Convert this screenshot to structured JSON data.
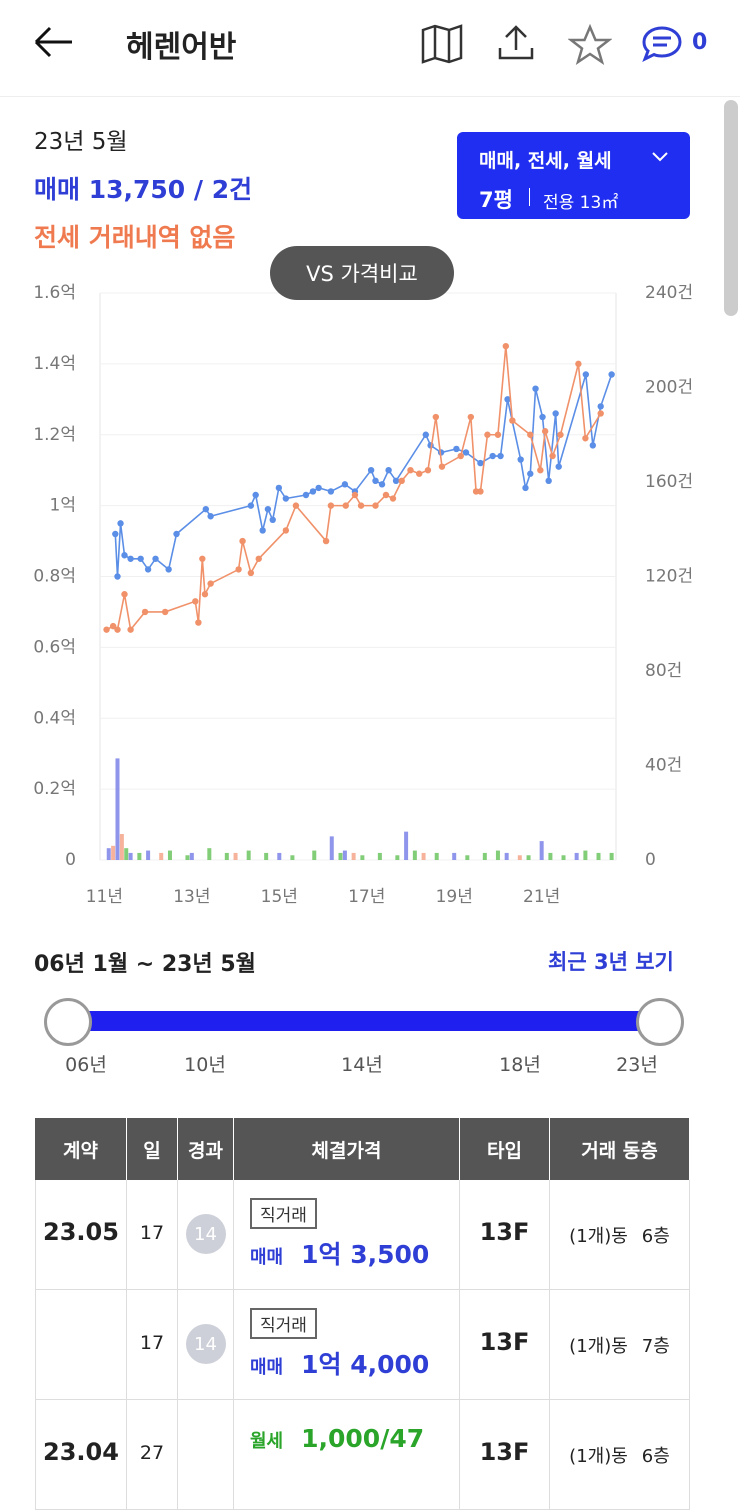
{
  "header": {
    "title": "헤렌어반",
    "comment_count": "0"
  },
  "summary": {
    "period": "23년 5월",
    "sale": "매매 13,750 / 2건",
    "lease": "전세 거래내역 없음",
    "filter": "매매, 전세, 월세",
    "size": "7평",
    "area": "전용 13㎡",
    "compare": "VS 가격비교"
  },
  "chart_data": {
    "type": "line",
    "xlim": [
      10.9,
      22.7
    ],
    "xticks": [
      {
        "value": 11,
        "label": "11년"
      },
      {
        "value": 13,
        "label": "13년"
      },
      {
        "value": 15,
        "label": "15년"
      },
      {
        "value": 17,
        "label": "17년"
      },
      {
        "value": 19,
        "label": "19년"
      },
      {
        "value": 21,
        "label": "21년"
      }
    ],
    "ylim": [
      0,
      1.6
    ],
    "yticks": [
      0,
      {
        "value": 0.2,
        "label": "0.2억"
      },
      {
        "value": 0.4,
        "label": "0.4억"
      },
      {
        "value": 0.6,
        "label": "0.6억"
      },
      {
        "value": 0.8,
        "label": "0.8억"
      },
      {
        "value": 1,
        "label": "1억"
      },
      {
        "value": 1.2,
        "label": "1.2억"
      },
      {
        "value": 1.4,
        "label": "1.4억"
      },
      {
        "value": 1.6,
        "label": "1.6억"
      }
    ],
    "y2lim": [
      0,
      240
    ],
    "y2ticks": [
      0,
      {
        "value": 40,
        "label": "40건"
      },
      {
        "value": 80,
        "label": "80건"
      },
      {
        "value": 120,
        "label": "120건"
      },
      {
        "value": 160,
        "label": "160건"
      },
      {
        "value": 200,
        "label": "200건"
      },
      {
        "value": 240,
        "label": "240건"
      }
    ],
    "grid": true,
    "series": [
      {
        "name": "매매",
        "color": "#5b8ee6",
        "x": [
          11.25,
          11.3,
          11.37,
          11.46,
          11.6,
          11.83,
          12.0,
          12.17,
          12.47,
          12.65,
          13.32,
          13.43,
          14.35,
          14.46,
          14.62,
          14.74,
          14.85,
          14.99,
          15.15,
          15.61,
          15.77,
          15.9,
          16.18,
          16.5,
          16.73,
          17.1,
          17.2,
          17.35,
          17.5,
          17.67,
          18.35,
          18.46,
          18.7,
          19.05,
          19.27,
          19.6,
          19.88,
          20.06,
          20.22,
          20.52,
          20.63,
          20.74,
          20.86,
          21.02,
          21.16,
          21.32,
          21.39,
          22.01,
          22.17,
          22.35,
          22.6
        ],
        "values": [
          0.92,
          0.8,
          0.95,
          0.86,
          0.85,
          0.85,
          0.82,
          0.85,
          0.82,
          0.92,
          0.99,
          0.97,
          1.0,
          1.03,
          0.93,
          0.99,
          0.96,
          1.05,
          1.02,
          1.03,
          1.04,
          1.05,
          1.04,
          1.06,
          1.04,
          1.1,
          1.07,
          1.06,
          1.1,
          1.07,
          1.2,
          1.17,
          1.15,
          1.16,
          1.15,
          1.12,
          1.14,
          1.14,
          1.3,
          1.13,
          1.05,
          1.09,
          1.33,
          1.25,
          1.07,
          1.26,
          1.11,
          1.37,
          1.17,
          1.28,
          1.37
        ]
      },
      {
        "name": "전세",
        "color": "#f0916a",
        "x": [
          11.05,
          11.2,
          11.3,
          11.46,
          11.6,
          11.93,
          12.39,
          13.08,
          13.15,
          13.24,
          13.3,
          13.43,
          14.07,
          14.16,
          14.35,
          14.53,
          15.15,
          15.38,
          16.07,
          16.18,
          16.52,
          16.73,
          16.87,
          17.2,
          17.44,
          17.6,
          17.8,
          18.0,
          18.2,
          18.4,
          18.58,
          18.72,
          19.15,
          19.38,
          19.5,
          19.6,
          19.76,
          20.0,
          20.18,
          20.33,
          20.74,
          20.97,
          21.08,
          21.25,
          21.43,
          21.84,
          22.0,
          22.35
        ],
        "values": [
          0.65,
          0.66,
          0.65,
          0.75,
          0.65,
          0.7,
          0.7,
          0.73,
          0.67,
          0.85,
          0.75,
          0.78,
          0.82,
          0.9,
          0.81,
          0.85,
          0.93,
          1.0,
          0.9,
          1.0,
          1.0,
          1.03,
          1.0,
          1.0,
          1.03,
          1.02,
          1.07,
          1.1,
          1.09,
          1.1,
          1.25,
          1.11,
          1.14,
          1.25,
          1.04,
          1.04,
          1.2,
          1.2,
          1.45,
          1.24,
          1.2,
          1.1,
          1.21,
          1.14,
          1.2,
          1.4,
          1.19,
          1.26
        ]
      }
    ],
    "bars": [
      {
        "name": "매매",
        "color": "#7b83e8",
        "axis": "y2",
        "x": [
          11.1,
          11.3,
          11.6,
          12.0,
          13.0,
          15.0,
          16.2,
          16.5,
          17.9,
          19.0,
          20.2,
          21.0,
          21.8
        ],
        "values": [
          5,
          43,
          3,
          4,
          3,
          3,
          10,
          4,
          12,
          3,
          3,
          8,
          3
        ]
      },
      {
        "name": "전세",
        "color": "#f4a58a",
        "axis": "y2",
        "x": [
          11.2,
          11.4,
          12.3,
          14.0,
          16.7,
          18.3,
          20.5
        ],
        "values": [
          6,
          11,
          3,
          3,
          3,
          3,
          2
        ]
      },
      {
        "name": "월세",
        "color": "#6cc45f",
        "axis": "y2",
        "x": [
          11.5,
          11.8,
          12.5,
          12.9,
          13.4,
          13.8,
          14.3,
          14.7,
          15.3,
          15.8,
          16.4,
          16.9,
          17.3,
          17.7,
          18.1,
          18.6,
          19.3,
          19.7,
          20.0,
          20.7,
          21.2,
          21.5,
          22.0,
          22.3,
          22.6
        ],
        "values": [
          5,
          3,
          4,
          2,
          5,
          3,
          4,
          3,
          2,
          4,
          3,
          2,
          3,
          2,
          4,
          3,
          2,
          3,
          4,
          2,
          3,
          2,
          4,
          3,
          3
        ]
      }
    ]
  },
  "range": {
    "label": "06년 1월 ~ 23년 5월",
    "recent": "최근 3년 보기",
    "ticks": [
      "06년",
      "10년",
      "14년",
      "18년",
      "23년"
    ]
  },
  "table": {
    "headers": [
      "계약",
      "일",
      "경과",
      "체결가격",
      "타입",
      "거래 동층"
    ],
    "rows": [
      {
        "contract": "23.05",
        "day": "17",
        "elapsed": "14",
        "tag": "직거래",
        "kind": "매매",
        "price": "1억 3,500",
        "type": "13F",
        "dong": "(1개)동",
        "floor": "6층"
      },
      {
        "day": "17",
        "elapsed": "14",
        "tag": "직거래",
        "kind": "매매",
        "price": "1억 4,000",
        "type": "13F",
        "dong": "(1개)동",
        "floor": "7층"
      },
      {
        "contract": "23.04",
        "day": "27",
        "kind": "월세",
        "price": "1,000/47",
        "type": "13F",
        "dong": "(1개)동",
        "floor": "6층"
      }
    ]
  }
}
